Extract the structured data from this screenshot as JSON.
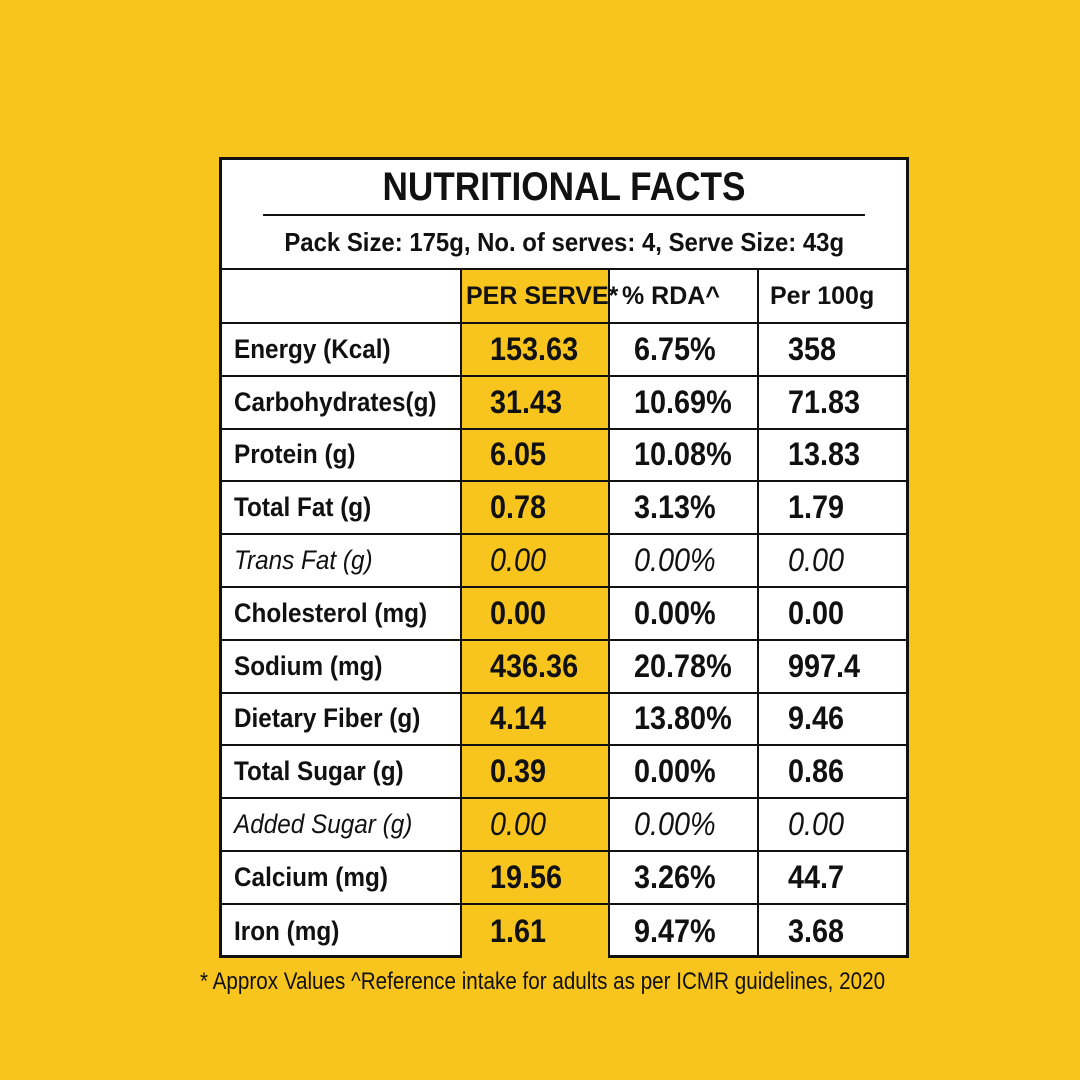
{
  "title": "NUTRITIONAL FACTS",
  "pack_info": "Pack Size: 175g, No. of serves: 4, Serve Size: 43g",
  "columns": [
    "PER SERVE*",
    "% RDA^",
    "Per 100g"
  ],
  "rows": [
    {
      "label": "Energy (Kcal)",
      "per_serve": "153.63",
      "rda": "6.75%",
      "per_100g": "358",
      "italic": false
    },
    {
      "label": "Carbohydrates(g)",
      "per_serve": "31.43",
      "rda": "10.69%",
      "per_100g": "71.83",
      "italic": false
    },
    {
      "label": "Protein (g)",
      "per_serve": "6.05",
      "rda": "10.08%",
      "per_100g": "13.83",
      "italic": false
    },
    {
      "label": "Total Fat (g)",
      "per_serve": "0.78",
      "rda": "3.13%",
      "per_100g": "1.79",
      "italic": false
    },
    {
      "label": "Trans Fat (g)",
      "per_serve": "0.00",
      "rda": "0.00%",
      "per_100g": "0.00",
      "italic": true
    },
    {
      "label": "Cholesterol (mg)",
      "per_serve": "0.00",
      "rda": "0.00%",
      "per_100g": "0.00",
      "italic": false
    },
    {
      "label": "Sodium (mg)",
      "per_serve": "436.36",
      "rda": "20.78%",
      "per_100g": "997.4",
      "italic": false
    },
    {
      "label": "Dietary Fiber (g)",
      "per_serve": "4.14",
      "rda": "13.80%",
      "per_100g": "9.46",
      "italic": false
    },
    {
      "label": "Total Sugar (g)",
      "per_serve": "0.39",
      "rda": "0.00%",
      "per_100g": "0.86",
      "italic": false
    },
    {
      "label": "Added Sugar (g)",
      "per_serve": "0.00",
      "rda": "0.00%",
      "per_100g": "0.00",
      "italic": true
    },
    {
      "label": "Calcium (mg)",
      "per_serve": "19.56",
      "rda": "3.26%",
      "per_100g": "44.7",
      "italic": false
    },
    {
      "label": "Iron (mg)",
      "per_serve": "1.61",
      "rda": "9.47%",
      "per_100g": "3.68",
      "italic": false
    }
  ],
  "footnote": "* Approx Values ^Reference intake for adults as per ICMR guidelines, 2020",
  "colors": {
    "background": "#F8C51F",
    "table": "#FFFFFF",
    "text": "#111111"
  }
}
